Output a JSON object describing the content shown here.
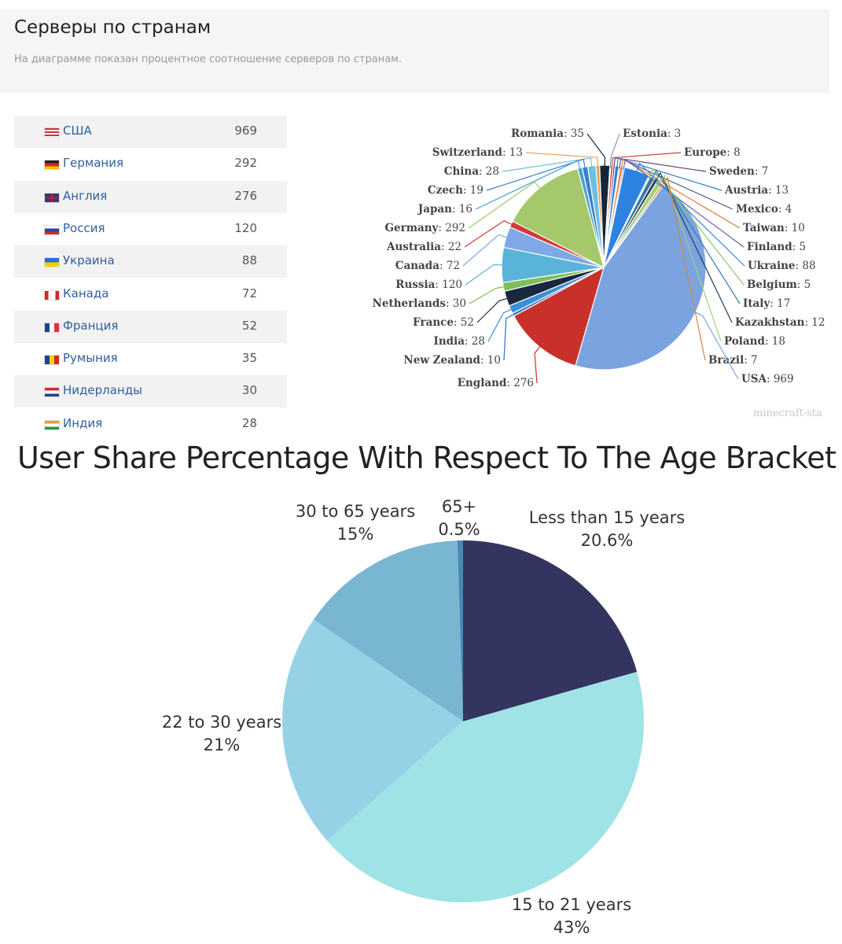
{
  "header": {
    "title": "Серверы по странам",
    "subtitle": "На диаграмме показан процентное соотношение серверов по странам."
  },
  "table": {
    "rows": [
      {
        "name": "США",
        "count": "969",
        "flag": "us"
      },
      {
        "name": "Германия",
        "count": "292",
        "flag": "de"
      },
      {
        "name": "Англия",
        "count": "276",
        "flag": "gb"
      },
      {
        "name": "Россия",
        "count": "120",
        "flag": "ru"
      },
      {
        "name": "Украина",
        "count": "88",
        "flag": "ua"
      },
      {
        "name": "Канада",
        "count": "72",
        "flag": "ca"
      },
      {
        "name": "Франция",
        "count": "52",
        "flag": "fr"
      },
      {
        "name": "Румыния",
        "count": "35",
        "flag": "ro"
      },
      {
        "name": "Нидерланды",
        "count": "30",
        "flag": "nl"
      },
      {
        "name": "Индия",
        "count": "28",
        "flag": "in"
      }
    ]
  },
  "watermark": "minecraft-sta",
  "chart_data": [
    {
      "type": "pie",
      "title": "",
      "label_format": "{name}: {value}",
      "slices": [
        {
          "name": "USA",
          "value": 969,
          "color": "#7ba3e0"
        },
        {
          "name": "England",
          "value": 276,
          "color": "#c9302c"
        },
        {
          "name": "New Zealand",
          "value": 10,
          "color": "#2f6fbf"
        },
        {
          "name": "India",
          "value": 28,
          "color": "#3a8fd6"
        },
        {
          "name": "France",
          "value": 52,
          "color": "#18293f"
        },
        {
          "name": "Netherlands",
          "value": 30,
          "color": "#7fbf5a"
        },
        {
          "name": "Russia",
          "value": 120,
          "color": "#5ab3d8"
        },
        {
          "name": "Canada",
          "value": 72,
          "color": "#7ea9e6"
        },
        {
          "name": "Australia",
          "value": 22,
          "color": "#d13b3b"
        },
        {
          "name": "Germany",
          "value": 292,
          "color": "#a4c86a"
        },
        {
          "name": "Japan",
          "value": 16,
          "color": "#4aa2d8"
        },
        {
          "name": "Czech",
          "value": 19,
          "color": "#3f7fc9"
        },
        {
          "name": "China",
          "value": 28,
          "color": "#6cc0e0"
        },
        {
          "name": "Switzerland",
          "value": 13,
          "color": "#e7a25a"
        },
        {
          "name": "Romania",
          "value": 35,
          "color": "#15253a"
        },
        {
          "name": "Estonia",
          "value": 3,
          "color": "#8a9bb5"
        },
        {
          "name": "Europe",
          "value": 8,
          "color": "#c44a3a"
        },
        {
          "name": "Sweden",
          "value": 7,
          "color": "#5b3f7a"
        },
        {
          "name": "Austria",
          "value": 13,
          "color": "#2f80d8"
        },
        {
          "name": "Mexico",
          "value": 4,
          "color": "#4d5a8a"
        },
        {
          "name": "Taiwan",
          "value": 10,
          "color": "#e07b39"
        },
        {
          "name": "Finland",
          "value": 5,
          "color": "#6f5fa8"
        },
        {
          "name": "Ukraine",
          "value": 88,
          "color": "#2e82e0"
        },
        {
          "name": "Belgium",
          "value": 5,
          "color": "#8fc86a"
        },
        {
          "name": "Italy",
          "value": 17,
          "color": "#3a78a0"
        },
        {
          "name": "Kazakhstan",
          "value": 12,
          "color": "#253c5a"
        },
        {
          "name": "Poland",
          "value": 18,
          "color": "#9fd27a"
        },
        {
          "name": "Brazil",
          "value": 7,
          "color": "#d9823b"
        }
      ]
    },
    {
      "type": "pie",
      "title": "User Share Percentage With Respect To The Age Bracket",
      "slices": [
        {
          "name": "Less than 15 years",
          "value": 20.6,
          "label": "20.6%",
          "color": "#33345f"
        },
        {
          "name": "15 to 21 years",
          "value": 43,
          "label": "43%",
          "color": "#9fe3e6"
        },
        {
          "name": "22 to 30 years",
          "value": 21,
          "label": "21%",
          "color": "#97d1e6"
        },
        {
          "name": "30 to 65 years",
          "value": 15,
          "label": "15%",
          "color": "#79b6d2"
        },
        {
          "name": "65+",
          "value": 0.5,
          "label": "0.5%",
          "color": "#4a86b4"
        }
      ]
    }
  ]
}
